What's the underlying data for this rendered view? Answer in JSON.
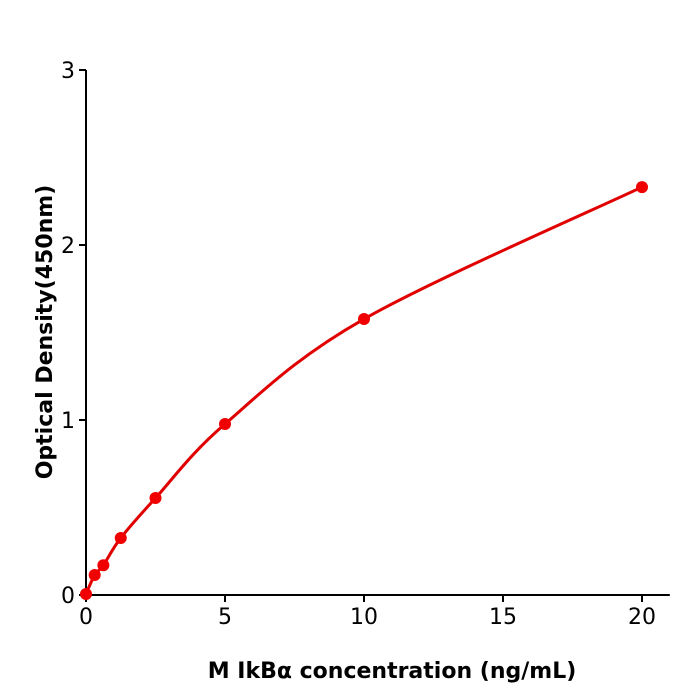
{
  "chart_data": {
    "type": "line",
    "title": "",
    "xlabel": "M  IkBα concentration (ng/mL)",
    "ylabel": "Optical Density(450nm)",
    "xlim": [
      0,
      21
    ],
    "ylim": [
      0,
      3
    ],
    "xticks": [
      0,
      5,
      10,
      15,
      20
    ],
    "yticks": [
      0,
      1,
      2,
      3
    ],
    "xtick_labels": [
      "0",
      "5",
      "10",
      "15",
      "20"
    ],
    "ytick_labels": [
      "0",
      "1",
      "2",
      "3"
    ],
    "grid": false,
    "series": [
      {
        "x": [
          0,
          0.3125,
          0.625,
          1.25,
          2.5,
          5,
          10,
          20
        ],
        "y": [
          0.006,
          0.114,
          0.17,
          0.326,
          0.554,
          0.977,
          1.577,
          2.331
        ],
        "color": "#e00000",
        "marker": "circle",
        "fit": "smooth curve"
      }
    ]
  }
}
